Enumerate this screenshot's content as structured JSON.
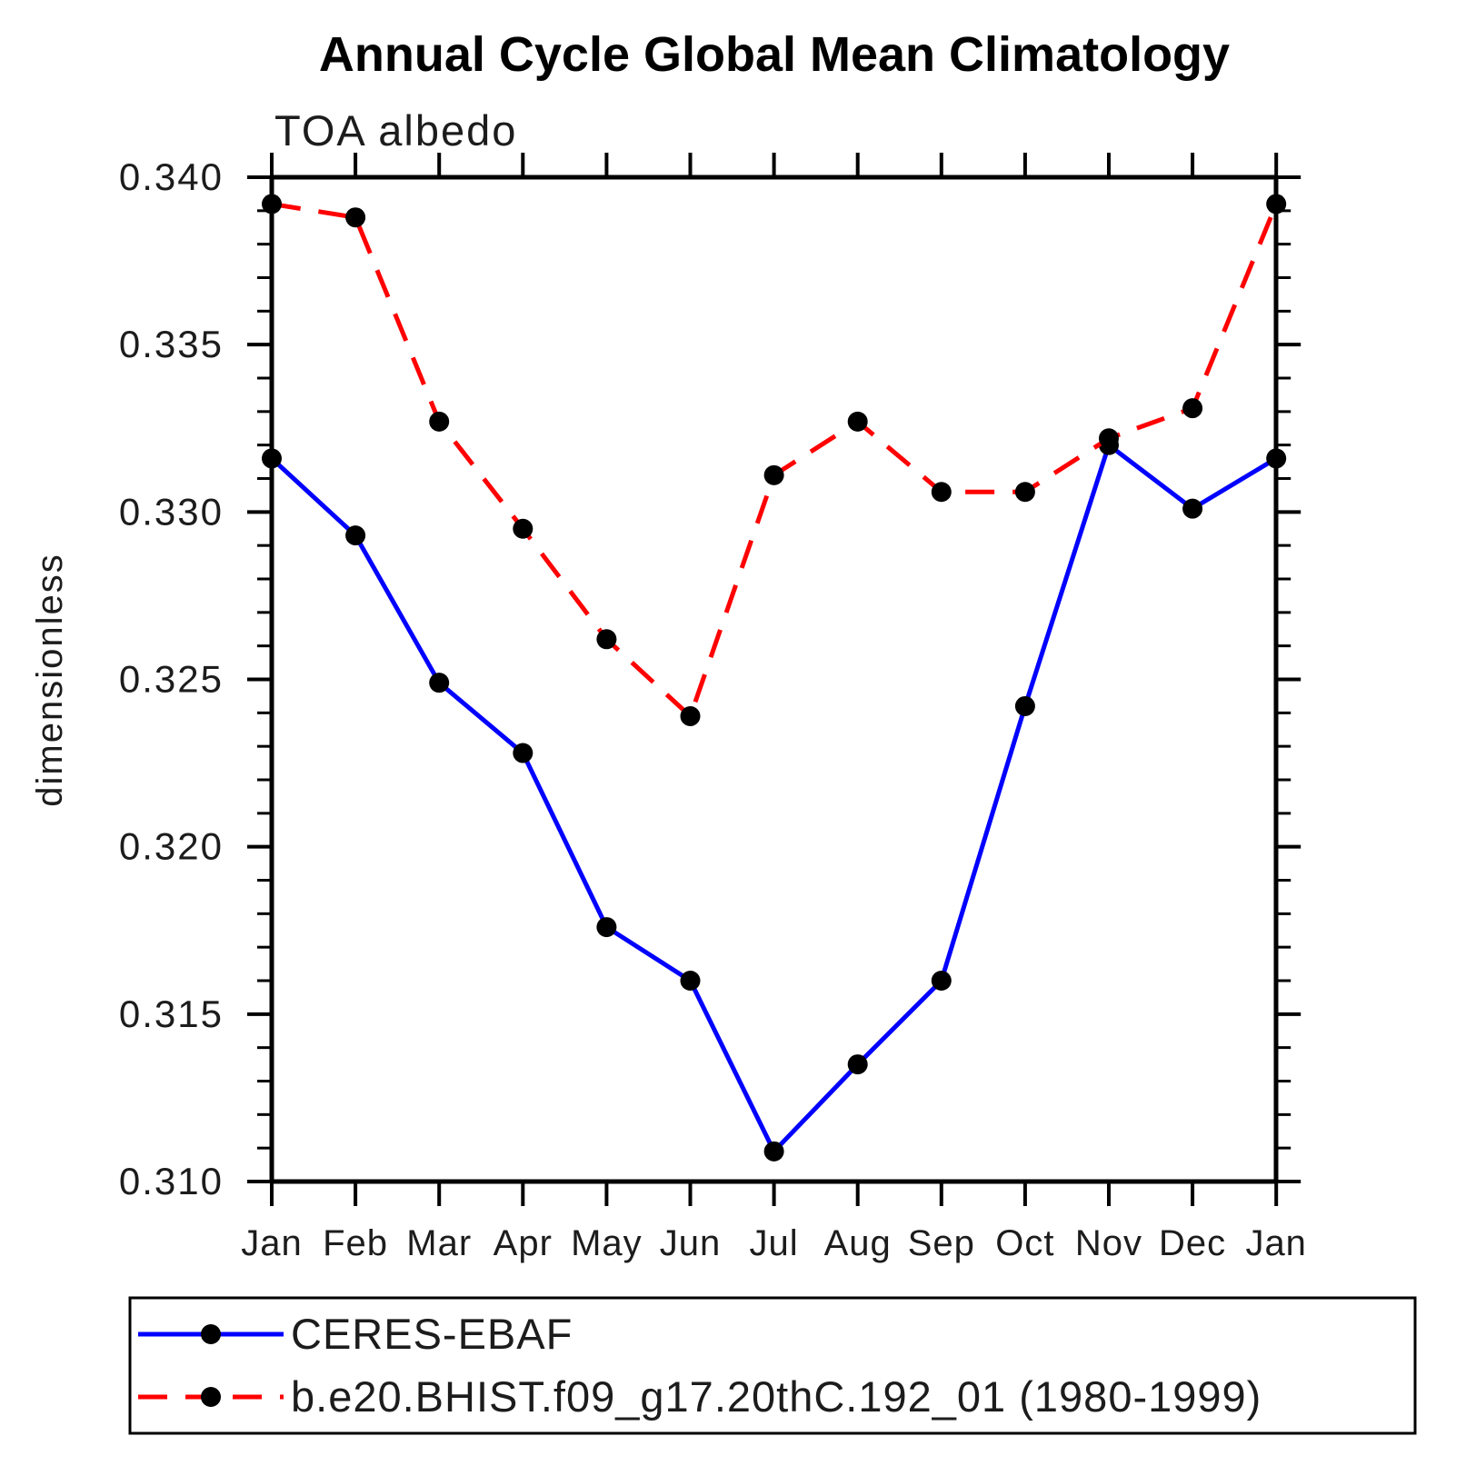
{
  "title": "Annual Cycle Global Mean Climatology",
  "subtitle": "TOA albedo",
  "ylabel": "dimensionless",
  "chart_data": {
    "type": "line",
    "categories": [
      "Jan",
      "Feb",
      "Mar",
      "Apr",
      "May",
      "Jun",
      "Jul",
      "Aug",
      "Sep",
      "Oct",
      "Nov",
      "Dec",
      "Jan"
    ],
    "series": [
      {
        "name": "CERES-EBAF",
        "color": "#0000ff",
        "line_style": "solid",
        "marker": "circle",
        "marker_color": "#000000",
        "values": [
          0.3316,
          0.3293,
          0.3249,
          0.3228,
          0.3176,
          0.316,
          0.3109,
          0.3135,
          0.316,
          0.3242,
          0.332,
          0.3301,
          0.3316
        ]
      },
      {
        "name": "b.e20.BHIST.f09_g17.20thC.192_01 (1980-1999)",
        "color": "#ff0000",
        "line_style": "dashed",
        "marker": "circle",
        "marker_color": "#000000",
        "values": [
          0.3392,
          0.3388,
          0.3327,
          0.3295,
          0.3262,
          0.3239,
          0.3311,
          0.3327,
          0.3306,
          0.3306,
          0.3322,
          0.3331,
          0.3392
        ]
      }
    ],
    "ylim": [
      0.31,
      0.34
    ],
    "ytick_major_step": 0.005,
    "ytick_minor_step": 0.001,
    "grid": false,
    "legend_position": "bottom"
  }
}
